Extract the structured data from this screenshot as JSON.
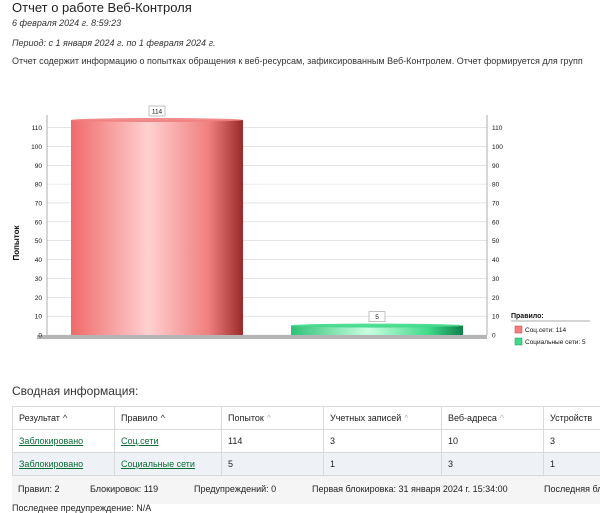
{
  "report": {
    "title": "Отчет о работе Веб-Контроля",
    "date": "6 февраля 2024 г. 8:59:23",
    "period": "Период: с 1 января 2024 г. по 1 февраля 2024 г.",
    "description": "Отчет содержит информацию о попытках обращения к веб-ресурсам, зафиксированным Веб-Контролем. Отчет формируется для групп"
  },
  "chart_data": {
    "type": "bar",
    "categories": [
      "Соц.сети",
      "Социальные сети"
    ],
    "values": [
      114,
      5
    ],
    "value_labels": [
      "114",
      "5"
    ],
    "ylabel": "Попыток",
    "ylim": [
      0,
      114
    ],
    "yticks": [
      0,
      10,
      20,
      30,
      40,
      50,
      60,
      70,
      80,
      90,
      100,
      110
    ],
    "ytick_labels": [
      "0",
      "10",
      "20",
      "30",
      "40",
      "50",
      "60",
      "70",
      "80",
      "90",
      "100",
      "110"
    ],
    "grid": true,
    "colors": [
      "#f07f7f",
      "#3fd98a"
    ],
    "legend_title": "Правило:",
    "legend_entries": [
      "Соц.сети: 114",
      "Социальные сети: 5"
    ],
    "legend_position": "right"
  },
  "summary": {
    "title": "Сводная информация:",
    "columns": [
      {
        "label": "Результат",
        "arrow": "^"
      },
      {
        "label": "Правило",
        "arrow": "^"
      },
      {
        "label": "Попыток",
        "arrow": "^"
      },
      {
        "label": "Учетных записей",
        "arrow": "^"
      },
      {
        "label": "Веб-адреса",
        "arrow": "^"
      },
      {
        "label": "Устройств",
        "arrow": ""
      }
    ],
    "rows": [
      {
        "result": "Заблокировано",
        "rule": "Соц.сети",
        "attempts": "114",
        "accounts": "3",
        "urls": "10",
        "devices": "3"
      },
      {
        "result": "Заблокировано",
        "rule": "Социальные сети",
        "attempts": "5",
        "accounts": "1",
        "urls": "3",
        "devices": "1"
      }
    ],
    "footer": {
      "rules": "Правил: 2",
      "blocks": "Блокировок: 119",
      "warnings": "Предупреждений: 0",
      "first_block": "Первая блокировка: 31 января 2024 г. 15:34:00",
      "last_block": "Последняя бл",
      "last_warning": "Последнее предупреждение: N/A"
    }
  }
}
